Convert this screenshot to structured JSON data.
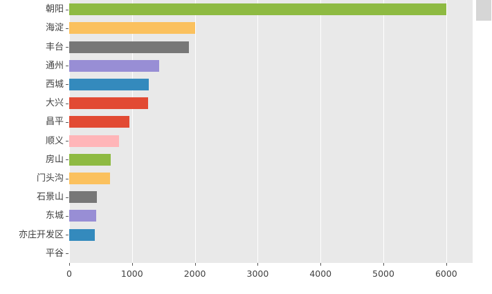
{
  "figure": {
    "background": "#FFFFFF"
  },
  "chart_data": {
    "type": "bar",
    "orientation": "horizontal",
    "title": "",
    "xlabel": "",
    "ylabel": "",
    "categories": [
      "朝阳",
      "海淀",
      "丰台",
      "通州",
      "西城",
      "大兴",
      "昌平",
      "顺义",
      "房山",
      "门头沟",
      "石景山",
      "东城",
      "亦庄开发区",
      "平谷"
    ],
    "values": [
      6000,
      2000,
      1900,
      1430,
      1270,
      1250,
      960,
      790,
      660,
      650,
      440,
      430,
      410,
      0
    ],
    "bar_colors": [
      "#8EBA42",
      "#FBC15E",
      "#777777",
      "#988ED5",
      "#348ABD",
      "#E24A33",
      "#E24A33",
      "#FFB5B8",
      "#8EBA42",
      "#FBC15E",
      "#777777",
      "#988ED5",
      "#348ABD",
      "#E24A33"
    ],
    "x_ticks": [
      0,
      1000,
      2000,
      3000,
      4000,
      5000,
      6000
    ],
    "xlim": [
      0,
      6420
    ],
    "grid": true,
    "legend": "none",
    "plot_background": "#E9E9E9",
    "gridline_color": "#FFFFFF",
    "tick_label_color": "#3F3F3F",
    "tick_mark_color": "#555555"
  },
  "artifacts": {
    "corner_box_color": "#D6D6D6"
  }
}
